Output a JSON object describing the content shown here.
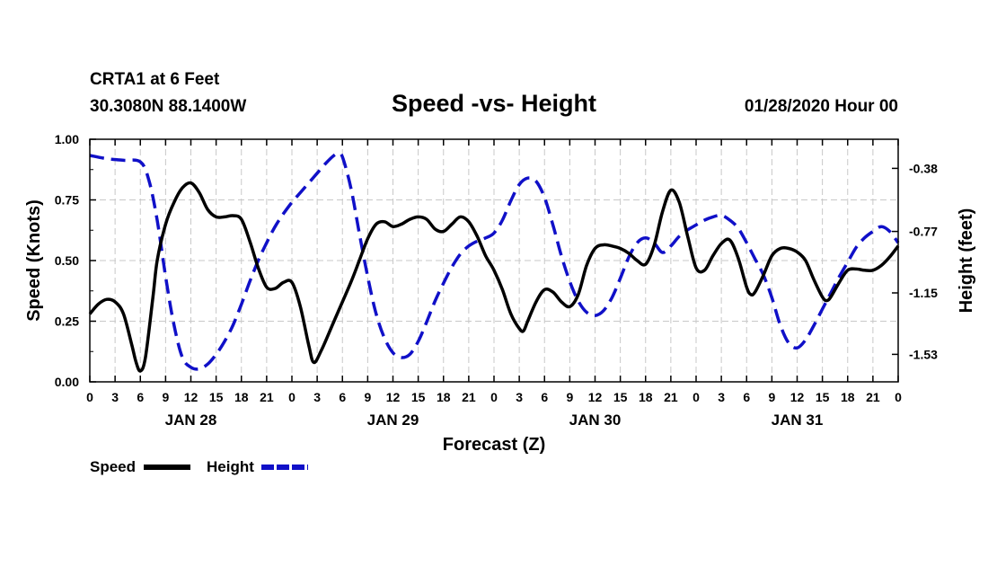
{
  "chart_data": {
    "type": "line",
    "station": "CRTA1 at 6 Feet",
    "location": "30.3080N 88.1400W",
    "title": "Speed -vs- Height",
    "run": "01/28/2020 Hour 00",
    "xlabel": "Forecast (Z)",
    "ylabel_left": "Speed (Knots)",
    "ylabel_right": "Height (feet)",
    "x_range": [
      0,
      96
    ],
    "ylim_left": [
      0,
      1
    ],
    "ylim_right": [
      -1.7,
      -0.2
    ],
    "y_ticks_left": [
      0,
      0.25,
      0.5,
      0.75,
      1
    ],
    "y_tick_labels_left": [
      "0.00",
      "0.25",
      "0.50",
      "0.75",
      "1.00"
    ],
    "y_ticks_right": [
      -0.38,
      -0.77,
      -1.15,
      -1.53
    ],
    "y_tick_labels_right": [
      "-0.38",
      "-0.77",
      "-1.15",
      "-1.53"
    ],
    "x_ticks": [
      0,
      3,
      6,
      9,
      12,
      15,
      18,
      21,
      24,
      27,
      30,
      33,
      36,
      39,
      42,
      45,
      48,
      51,
      54,
      57,
      60,
      63,
      66,
      69,
      72,
      75,
      78,
      81,
      84,
      87,
      90,
      93,
      96
    ],
    "x_tick_labels": [
      "0",
      "3",
      "6",
      "9",
      "12",
      "15",
      "18",
      "21",
      "0",
      "3",
      "6",
      "9",
      "12",
      "15",
      "18",
      "21",
      "0",
      "3",
      "6",
      "9",
      "12",
      "15",
      "18",
      "21",
      "0",
      "3",
      "6",
      "9",
      "12",
      "15",
      "18",
      "21",
      "0"
    ],
    "day_labels": [
      {
        "hour": 12,
        "label": "JAN 28"
      },
      {
        "hour": 36,
        "label": "JAN 29"
      },
      {
        "hour": 60,
        "label": "JAN 30"
      },
      {
        "hour": 84,
        "label": "JAN 31"
      }
    ],
    "legend": [
      {
        "label": "Speed",
        "color": "#000000",
        "style": "solid"
      },
      {
        "label": "Height",
        "color": "#1010c8",
        "style": "dashed"
      }
    ],
    "series": [
      {
        "name": "Speed",
        "axis": "left",
        "color": "#000000",
        "points": [
          [
            0,
            0.28
          ],
          [
            1,
            0.32
          ],
          [
            2,
            0.34
          ],
          [
            3,
            0.33
          ],
          [
            4,
            0.28
          ],
          [
            5,
            0.15
          ],
          [
            5.5,
            0.08
          ],
          [
            6,
            0.045
          ],
          [
            6.6,
            0.1
          ],
          [
            7.5,
            0.35
          ],
          [
            8,
            0.5
          ],
          [
            9,
            0.65
          ],
          [
            10,
            0.74
          ],
          [
            11,
            0.8
          ],
          [
            12,
            0.82
          ],
          [
            13,
            0.78
          ],
          [
            14,
            0.71
          ],
          [
            15,
            0.68
          ],
          [
            16,
            0.68
          ],
          [
            17,
            0.685
          ],
          [
            18,
            0.67
          ],
          [
            19,
            0.58
          ],
          [
            20,
            0.47
          ],
          [
            21,
            0.39
          ],
          [
            22,
            0.385
          ],
          [
            23,
            0.41
          ],
          [
            24,
            0.41
          ],
          [
            25,
            0.31
          ],
          [
            26,
            0.15
          ],
          [
            26.6,
            0.08
          ],
          [
            27.5,
            0.13
          ],
          [
            29,
            0.25
          ],
          [
            31,
            0.41
          ],
          [
            32,
            0.5
          ],
          [
            33,
            0.59
          ],
          [
            34,
            0.65
          ],
          [
            35,
            0.66
          ],
          [
            36,
            0.64
          ],
          [
            37,
            0.65
          ],
          [
            38,
            0.67
          ],
          [
            39,
            0.68
          ],
          [
            40,
            0.67
          ],
          [
            41,
            0.63
          ],
          [
            42,
            0.62
          ],
          [
            43,
            0.65
          ],
          [
            44,
            0.68
          ],
          [
            45,
            0.66
          ],
          [
            46,
            0.6
          ],
          [
            47,
            0.52
          ],
          [
            48,
            0.46
          ],
          [
            49,
            0.38
          ],
          [
            50,
            0.28
          ],
          [
            51,
            0.22
          ],
          [
            51.5,
            0.21
          ],
          [
            52,
            0.25
          ],
          [
            53,
            0.33
          ],
          [
            54,
            0.38
          ],
          [
            55,
            0.37
          ],
          [
            56,
            0.33
          ],
          [
            57,
            0.31
          ],
          [
            58,
            0.36
          ],
          [
            59,
            0.48
          ],
          [
            60,
            0.55
          ],
          [
            61,
            0.565
          ],
          [
            62,
            0.56
          ],
          [
            63,
            0.55
          ],
          [
            64,
            0.53
          ],
          [
            65,
            0.5
          ],
          [
            66,
            0.485
          ],
          [
            67,
            0.56
          ],
          [
            68,
            0.7
          ],
          [
            69,
            0.79
          ],
          [
            70,
            0.74
          ],
          [
            71,
            0.6
          ],
          [
            72,
            0.47
          ],
          [
            73,
            0.46
          ],
          [
            74,
            0.52
          ],
          [
            75,
            0.57
          ],
          [
            76,
            0.585
          ],
          [
            77,
            0.51
          ],
          [
            78,
            0.39
          ],
          [
            78.5,
            0.36
          ],
          [
            79,
            0.37
          ],
          [
            80,
            0.44
          ],
          [
            81,
            0.52
          ],
          [
            82,
            0.55
          ],
          [
            83,
            0.55
          ],
          [
            84,
            0.535
          ],
          [
            85,
            0.5
          ],
          [
            86,
            0.42
          ],
          [
            87,
            0.35
          ],
          [
            87.5,
            0.335
          ],
          [
            88,
            0.35
          ],
          [
            89,
            0.41
          ],
          [
            90,
            0.46
          ],
          [
            91,
            0.465
          ],
          [
            92,
            0.46
          ],
          [
            93,
            0.46
          ],
          [
            94,
            0.48
          ],
          [
            95,
            0.515
          ],
          [
            96,
            0.56
          ]
        ]
      },
      {
        "name": "Height",
        "axis": "right",
        "color": "#1010c8",
        "points": [
          [
            0,
            -0.3
          ],
          [
            2,
            -0.32
          ],
          [
            4,
            -0.33
          ],
          [
            6,
            -0.34
          ],
          [
            7,
            -0.45
          ],
          [
            8,
            -0.7
          ],
          [
            9,
            -1.05
          ],
          [
            10,
            -1.35
          ],
          [
            11,
            -1.55
          ],
          [
            12,
            -1.61
          ],
          [
            13,
            -1.62
          ],
          [
            14,
            -1.59
          ],
          [
            15,
            -1.53
          ],
          [
            16,
            -1.45
          ],
          [
            17,
            -1.35
          ],
          [
            18,
            -1.22
          ],
          [
            19,
            -1.08
          ],
          [
            20,
            -0.95
          ],
          [
            21,
            -0.84
          ],
          [
            22,
            -0.74
          ],
          [
            23,
            -0.66
          ],
          [
            24,
            -0.59
          ],
          [
            25,
            -0.53
          ],
          [
            26,
            -0.47
          ],
          [
            27,
            -0.41
          ],
          [
            28,
            -0.35
          ],
          [
            29,
            -0.3
          ],
          [
            29.5,
            -0.29
          ],
          [
            30,
            -0.31
          ],
          [
            31,
            -0.5
          ],
          [
            32,
            -0.78
          ],
          [
            33,
            -1.05
          ],
          [
            34,
            -1.28
          ],
          [
            35,
            -1.43
          ],
          [
            36,
            -1.52
          ],
          [
            37,
            -1.55
          ],
          [
            38,
            -1.53
          ],
          [
            39,
            -1.45
          ],
          [
            40,
            -1.33
          ],
          [
            41,
            -1.2
          ],
          [
            42,
            -1.09
          ],
          [
            43,
            -0.99
          ],
          [
            44,
            -0.91
          ],
          [
            45,
            -0.86
          ],
          [
            46,
            -0.83
          ],
          [
            47,
            -0.81
          ],
          [
            48,
            -0.78
          ],
          [
            49,
            -0.7
          ],
          [
            50,
            -0.58
          ],
          [
            51,
            -0.48
          ],
          [
            52,
            -0.44
          ],
          [
            53,
            -0.46
          ],
          [
            54,
            -0.56
          ],
          [
            55,
            -0.73
          ],
          [
            56,
            -0.92
          ],
          [
            57,
            -1.08
          ],
          [
            58,
            -1.2
          ],
          [
            59,
            -1.27
          ],
          [
            60,
            -1.29
          ],
          [
            61,
            -1.26
          ],
          [
            62,
            -1.18
          ],
          [
            63,
            -1.06
          ],
          [
            64,
            -0.93
          ],
          [
            65,
            -0.84
          ],
          [
            66,
            -0.81
          ],
          [
            67,
            -0.84
          ],
          [
            68,
            -0.9
          ],
          [
            69,
            -0.86
          ],
          [
            70,
            -0.8
          ],
          [
            71,
            -0.76
          ],
          [
            72,
            -0.73
          ],
          [
            73,
            -0.7
          ],
          [
            74,
            -0.68
          ],
          [
            75,
            -0.67
          ],
          [
            76,
            -0.7
          ],
          [
            77,
            -0.75
          ],
          [
            78,
            -0.84
          ],
          [
            79,
            -0.94
          ],
          [
            80,
            -1.04
          ],
          [
            81,
            -1.18
          ],
          [
            82,
            -1.35
          ],
          [
            83,
            -1.46
          ],
          [
            84,
            -1.49
          ],
          [
            85,
            -1.44
          ],
          [
            86,
            -1.35
          ],
          [
            87,
            -1.25
          ],
          [
            88,
            -1.15
          ],
          [
            89,
            -1.05
          ],
          [
            90,
            -0.96
          ],
          [
            91,
            -0.87
          ],
          [
            92,
            -0.81
          ],
          [
            93,
            -0.77
          ],
          [
            94,
            -0.74
          ],
          [
            95,
            -0.77
          ],
          [
            96,
            -0.84
          ]
        ]
      }
    ]
  }
}
